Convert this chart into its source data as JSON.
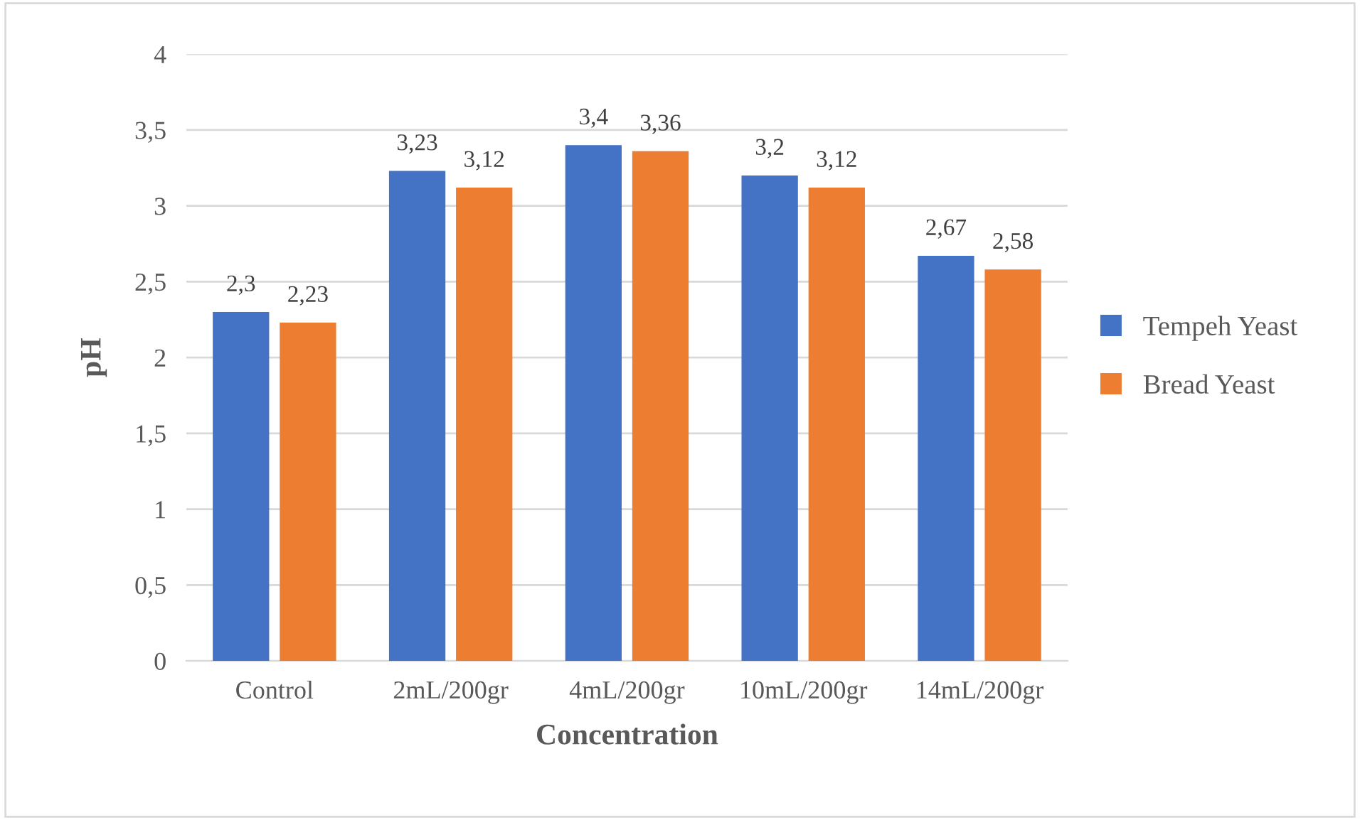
{
  "chart_data": {
    "type": "bar",
    "xlabel": "Concentration",
    "ylabel": "pH",
    "categories": [
      "Control",
      "2mL/200gr",
      "4mL/200gr",
      "10mL/200gr",
      "14mL/200gr"
    ],
    "series": [
      {
        "name": "Tempeh Yeast",
        "color": "#4472c4",
        "values": [
          2.3,
          3.23,
          3.4,
          3.2,
          2.67
        ],
        "value_labels": [
          "2,3",
          "3,23",
          "3,4",
          "3,2",
          "2,67"
        ]
      },
      {
        "name": "Bread Yeast",
        "color": "#ed7d31",
        "values": [
          2.23,
          3.12,
          3.36,
          3.12,
          2.58
        ],
        "value_labels": [
          "2,23",
          "3,12",
          "3,36",
          "3,12",
          "2,58"
        ]
      }
    ],
    "ylim": [
      0,
      4
    ],
    "yticks": [
      0,
      {
        "value": 0.5,
        "label": "0,5"
      },
      1,
      {
        "value": 1.5,
        "label": "1,5"
      },
      2,
      {
        "value": 2.5,
        "label": "2,5"
      },
      3,
      {
        "value": 3.5,
        "label": "3,5"
      },
      4
    ],
    "grid": "y",
    "legend": "right"
  }
}
